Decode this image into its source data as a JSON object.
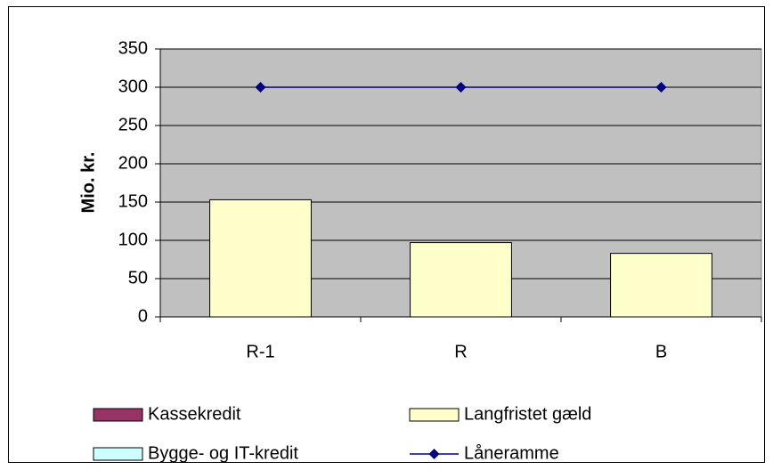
{
  "chart_data": {
    "type": "bar",
    "y_label": "Mio. kr.",
    "categories": [
      "R-1",
      "R",
      "B"
    ],
    "series": [
      {
        "name": "Kassekredit",
        "color": "#993366",
        "values": [
          0,
          0,
          0
        ]
      },
      {
        "name": "Langfristet gæld",
        "color": "#ffffcc",
        "values": [
          153,
          97,
          83
        ]
      },
      {
        "name": "Bygge- og IT-kredit",
        "color": "#ccffff",
        "values": [
          0,
          0,
          0
        ]
      },
      {
        "name": "Låneramme",
        "type": "line",
        "color": "#000080",
        "values": [
          300,
          300,
          300
        ]
      }
    ],
    "stacked": true,
    "ylim": [
      0,
      350
    ],
    "yticks": [
      0,
      50,
      100,
      150,
      200,
      250,
      300,
      350
    ],
    "grid": true,
    "plot_color": "#c0c0c0"
  }
}
